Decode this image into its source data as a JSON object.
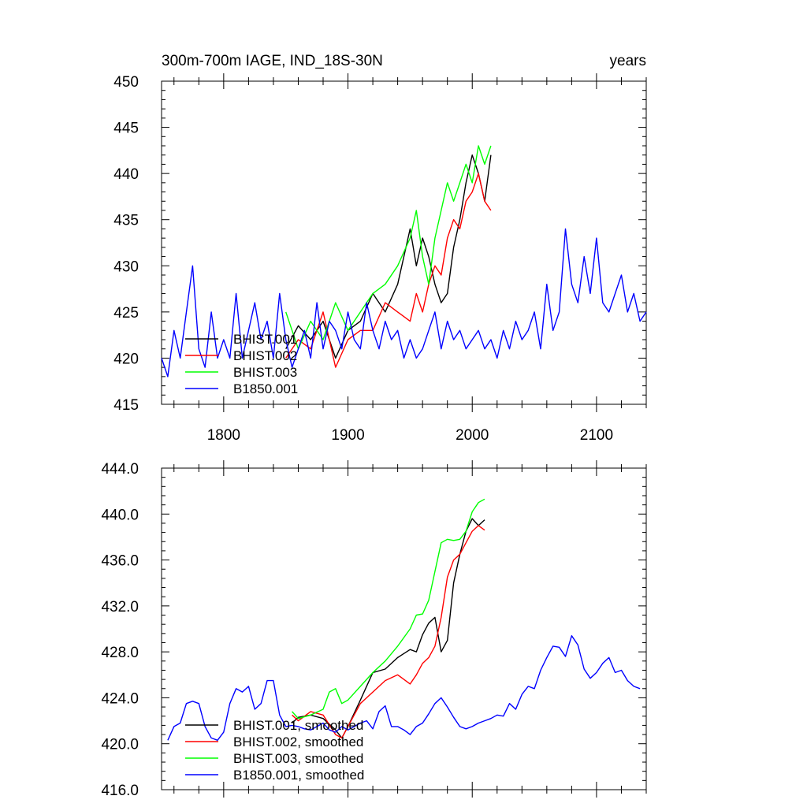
{
  "chart_data": [
    {
      "type": "line",
      "title": "300m-700m IAGE, IND_18S-30N",
      "units": "years",
      "xlim": [
        1750,
        2140
      ],
      "ylim": [
        415,
        450
      ],
      "xticks": [
        1800,
        1900,
        2000,
        2100
      ],
      "xtick_labels": [
        "1800",
        "1900",
        "2000",
        "2100"
      ],
      "yticks": [
        415,
        420,
        425,
        430,
        435,
        440,
        445,
        450
      ],
      "ytick_labels": [
        "415",
        "420",
        "425",
        "430",
        "435",
        "440",
        "445",
        "450"
      ],
      "legend_position": "bottom-left",
      "series": [
        {
          "name": "BHIST.001",
          "color": "#000000",
          "x": [
            1850,
            1860,
            1870,
            1880,
            1890,
            1900,
            1910,
            1920,
            1930,
            1940,
            1950,
            1955,
            1960,
            1965,
            1970,
            1975,
            1980,
            1985,
            1990,
            1995,
            2000,
            2005,
            2010,
            2015
          ],
          "y": [
            421,
            423.5,
            422,
            424,
            420,
            423,
            424,
            427,
            425,
            428,
            434,
            430,
            433,
            431,
            428,
            426,
            427,
            432,
            435,
            439,
            442,
            440,
            437,
            442
          ]
        },
        {
          "name": "BHIST.002",
          "color": "#ff0000",
          "x": [
            1850,
            1860,
            1870,
            1880,
            1890,
            1900,
            1910,
            1920,
            1930,
            1940,
            1950,
            1955,
            1960,
            1965,
            1970,
            1975,
            1980,
            1985,
            1990,
            1995,
            2000,
            2005,
            2010,
            2015
          ],
          "y": [
            420,
            422,
            421,
            425,
            419,
            422,
            423,
            423,
            426,
            425,
            424,
            427,
            425,
            428,
            430,
            429,
            433,
            435,
            434,
            437,
            438,
            440,
            437,
            436
          ]
        },
        {
          "name": "BHIST.003",
          "color": "#00ff00",
          "x": [
            1850,
            1860,
            1870,
            1880,
            1890,
            1900,
            1910,
            1920,
            1930,
            1940,
            1950,
            1955,
            1960,
            1965,
            1970,
            1975,
            1980,
            1985,
            1990,
            1995,
            2000,
            2005,
            2010,
            2015
          ],
          "y": [
            425,
            421,
            424,
            422,
            426,
            423,
            425,
            427,
            428,
            430,
            433,
            436,
            431,
            428,
            433,
            436,
            439,
            437,
            439,
            441,
            439,
            443,
            441,
            443
          ]
        },
        {
          "name": "B1850.001",
          "color": "#0000ff",
          "x": [
            1750,
            1755,
            1760,
            1765,
            1770,
            1775,
            1780,
            1785,
            1790,
            1795,
            1800,
            1805,
            1810,
            1815,
            1820,
            1825,
            1830,
            1835,
            1840,
            1845,
            1850,
            1855,
            1860,
            1865,
            1870,
            1875,
            1880,
            1885,
            1890,
            1895,
            1900,
            1905,
            1910,
            1915,
            1920,
            1925,
            1930,
            1935,
            1940,
            1945,
            1950,
            1955,
            1960,
            1965,
            1970,
            1975,
            1980,
            1985,
            1990,
            1995,
            2000,
            2005,
            2010,
            2015,
            2020,
            2025,
            2030,
            2035,
            2040,
            2045,
            2050,
            2055,
            2060,
            2065,
            2070,
            2075,
            2080,
            2085,
            2090,
            2095,
            2100,
            2105,
            2110,
            2115,
            2120,
            2125,
            2130,
            2135,
            2140
          ],
          "y": [
            420,
            418,
            423,
            420,
            425,
            430,
            421,
            419,
            425,
            420,
            422,
            420,
            427,
            420,
            423,
            426,
            422,
            424,
            420,
            427,
            422,
            419,
            421,
            423,
            420,
            426,
            421,
            424,
            423,
            421,
            425,
            422,
            421,
            426,
            423,
            421,
            424,
            422,
            423,
            420,
            422,
            420,
            421,
            423,
            425,
            421,
            424,
            422,
            423,
            421,
            422,
            423,
            421,
            422,
            420,
            423,
            421,
            424,
            422,
            423,
            425,
            421,
            428,
            423,
            425,
            434,
            428,
            426,
            431,
            427,
            433,
            426,
            425,
            427,
            429,
            425,
            427,
            424,
            425
          ]
        }
      ]
    },
    {
      "type": "line",
      "xlim": [
        1750,
        2140
      ],
      "ylim": [
        416,
        444
      ],
      "xticks": [
        1800,
        1900,
        2000,
        2100
      ],
      "yticks": [
        416,
        420,
        424,
        428,
        432,
        436,
        440,
        444
      ],
      "ytick_labels": [
        "416.0",
        "420.0",
        "424.0",
        "428.0",
        "432.0",
        "436.0",
        "440.0",
        "444.0"
      ],
      "legend_position": "bottom-left",
      "series": [
        {
          "name": "BHIST.001, smoothed",
          "color": "#000000",
          "x": [
            1855,
            1860,
            1870,
            1880,
            1890,
            1895,
            1900,
            1910,
            1920,
            1930,
            1940,
            1950,
            1955,
            1960,
            1965,
            1970,
            1975,
            1980,
            1985,
            1990,
            1995,
            2000,
            2005,
            2010
          ],
          "y": [
            421.8,
            422.3,
            422.5,
            422.2,
            421.2,
            420.5,
            421.5,
            423.8,
            426.2,
            426.5,
            427.5,
            428.2,
            428,
            429.5,
            430.5,
            431,
            428,
            429,
            434,
            436.5,
            438.5,
            439.6,
            439,
            439.5
          ]
        },
        {
          "name": "BHIST.002, smoothed",
          "color": "#ff0000",
          "x": [
            1855,
            1860,
            1870,
            1880,
            1890,
            1895,
            1900,
            1910,
            1920,
            1930,
            1940,
            1950,
            1955,
            1960,
            1965,
            1970,
            1975,
            1980,
            1985,
            1990,
            1995,
            2000,
            2005,
            2010
          ],
          "y": [
            422.5,
            422,
            422.8,
            422.5,
            420.8,
            420.5,
            421.5,
            423.5,
            424.5,
            425.5,
            426,
            425.2,
            426,
            427,
            427.5,
            428.5,
            431,
            434.5,
            436,
            436.5,
            437.5,
            438.5,
            439,
            438.6
          ]
        },
        {
          "name": "BHIST.003, smoothed",
          "color": "#00ff00",
          "x": [
            1855,
            1860,
            1870,
            1880,
            1885,
            1890,
            1895,
            1900,
            1910,
            1920,
            1930,
            1940,
            1950,
            1955,
            1960,
            1965,
            1970,
            1975,
            1980,
            1985,
            1990,
            1995,
            2000,
            2005,
            2010
          ],
          "y": [
            422.8,
            422.2,
            422.5,
            423,
            424.5,
            424.8,
            423.5,
            423.8,
            425,
            426.2,
            427.2,
            428.5,
            430,
            431.2,
            431.3,
            432.5,
            435,
            437.5,
            437.8,
            437.7,
            437.8,
            438.5,
            440.2,
            441,
            441.3
          ]
        },
        {
          "name": "B1850.001, smoothed",
          "color": "#0000ff",
          "x": [
            1755,
            1760,
            1765,
            1770,
            1775,
            1780,
            1785,
            1790,
            1795,
            1800,
            1805,
            1810,
            1815,
            1820,
            1825,
            1830,
            1835,
            1840,
            1845,
            1850,
            1855,
            1860,
            1865,
            1870,
            1875,
            1880,
            1885,
            1890,
            1895,
            1900,
            1905,
            1910,
            1915,
            1920,
            1925,
            1930,
            1935,
            1940,
            1945,
            1950,
            1955,
            1960,
            1965,
            1970,
            1975,
            1980,
            1985,
            1990,
            1995,
            2000,
            2005,
            2010,
            2015,
            2020,
            2025,
            2030,
            2035,
            2040,
            2045,
            2050,
            2055,
            2060,
            2065,
            2070,
            2075,
            2080,
            2085,
            2090,
            2095,
            2100,
            2105,
            2110,
            2115,
            2120,
            2125,
            2130,
            2135
          ],
          "y": [
            420.3,
            421.5,
            421.8,
            423.5,
            423.7,
            423.5,
            421.5,
            420.5,
            420.3,
            421,
            423.5,
            424.8,
            424.5,
            425,
            423,
            423.5,
            425.5,
            425.5,
            422.5,
            421.5,
            421.6,
            421.5,
            421.3,
            421.2,
            421.5,
            421.8,
            421.2,
            421,
            421.5,
            421.2,
            421.5,
            421.8,
            422,
            421.3,
            422.8,
            423.3,
            421.5,
            421.5,
            421.2,
            420.8,
            421.5,
            421.8,
            422.6,
            423.5,
            424,
            423.2,
            422.3,
            421.5,
            421.3,
            421.5,
            421.8,
            422,
            422.2,
            422.5,
            422.4,
            423.5,
            423,
            424.3,
            425,
            424.8,
            426.4,
            427.5,
            428.5,
            428.4,
            427.6,
            429.4,
            428.6,
            426.5,
            425.7,
            426.2,
            427,
            427.5,
            426.2,
            426.4,
            425.5,
            425,
            424.8
          ]
        }
      ]
    }
  ]
}
